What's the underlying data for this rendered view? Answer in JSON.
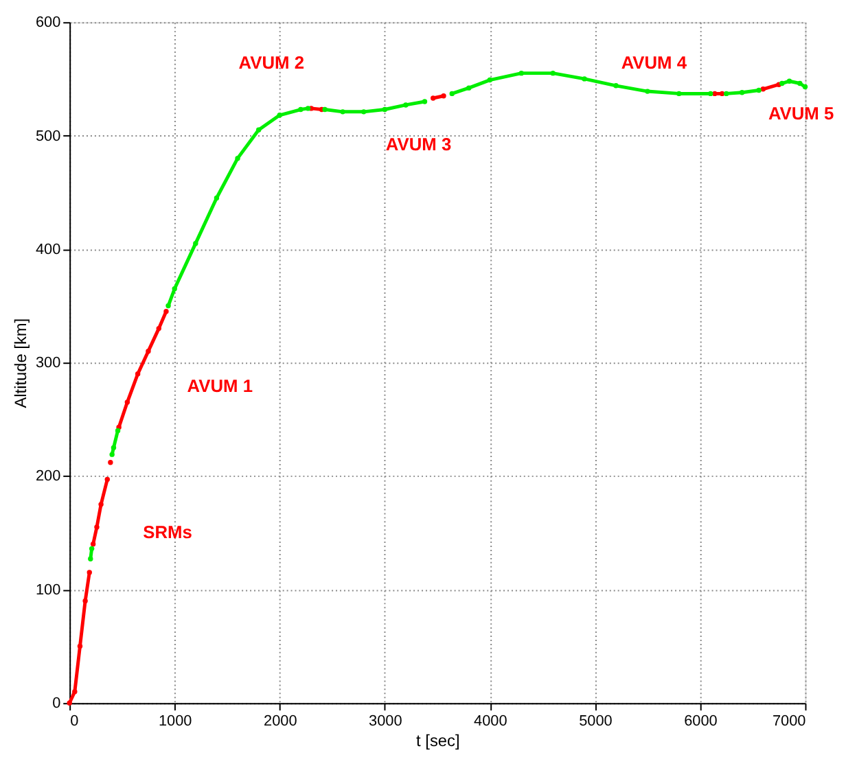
{
  "chart_data": {
    "type": "line",
    "xlabel": "t [sec]",
    "ylabel": "Altitude [km]",
    "marker": "circle",
    "xlim": [
      0,
      7000
    ],
    "ylim": [
      0,
      600
    ],
    "xticks": [
      0,
      1000,
      2000,
      3000,
      4000,
      5000,
      6000,
      7000
    ],
    "yticks": [
      0,
      100,
      200,
      300,
      400,
      500,
      600
    ],
    "grid": true,
    "series": [
      {
        "color": "#ff0000",
        "x": [
          0,
          50,
          100,
          150,
          190,
          200,
          225,
          260,
          300,
          360,
          380,
          390,
          395,
          470,
          550,
          650,
          750,
          850,
          920,
          1500,
          2300,
          2400,
          3000,
          3460,
          3560,
          4000,
          6140,
          6210,
          6400,
          6600,
          6750
        ],
        "values": [
          0,
          10,
          50,
          90,
          115,
          null,
          140,
          155,
          175,
          197,
          null,
          212,
          null,
          243,
          265,
          290,
          310,
          330,
          345,
          null,
          524,
          523,
          null,
          533,
          535,
          null,
          537,
          537,
          null,
          541,
          545
        ]
      },
      {
        "color": "#00ee00",
        "x": [
          200,
          212,
          300,
          405,
          420,
          460,
          700,
          940,
          1000,
          1200,
          1400,
          1600,
          1800,
          2000,
          2200,
          2270,
          2350,
          2430,
          2600,
          2800,
          3000,
          3200,
          3380,
          3510,
          3640,
          3800,
          4000,
          4300,
          4600,
          4900,
          5200,
          5500,
          5800,
          6100,
          6170,
          6250,
          6400,
          6560,
          6700,
          6780,
          6850,
          6950,
          7000
        ],
        "values": [
          127,
          136,
          null,
          219,
          225,
          240,
          null,
          350,
          365,
          405,
          445,
          480,
          505,
          518,
          523,
          524,
          null,
          523,
          521,
          521,
          523,
          527,
          530,
          null,
          537,
          542,
          549,
          555,
          555,
          550,
          544,
          539,
          537,
          537,
          null,
          537,
          538,
          540,
          null,
          546,
          548,
          546,
          543
        ]
      }
    ],
    "annotations": [
      "SRMs",
      "AVUM 1",
      "AVUM 2",
      "AVUM 3",
      "AVUM 4",
      "AVUM 5"
    ]
  }
}
